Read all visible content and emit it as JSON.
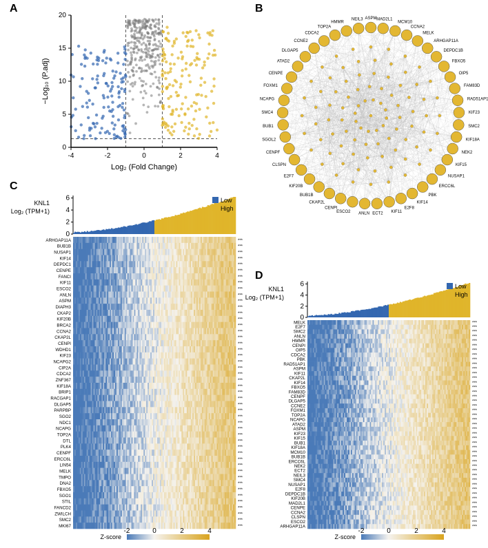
{
  "colors": {
    "blue": "#3367b0",
    "yellow": "#e0b52a",
    "gray": "#7a7a7a",
    "axis": "#000000",
    "heatmap_low": "#4a7ab8",
    "heatmap_mid": "#f5f3ef",
    "heatmap_high": "#d9a41f",
    "edge": "#b0b0b0",
    "node": "#e3b732"
  },
  "panelA": {
    "xlabel": "Log₂ (Fold Change)",
    "ylabel": "−Log₁₀ (P.adj)",
    "xlim": [
      -4,
      4
    ],
    "ylim": [
      0,
      20
    ],
    "xticks": [
      -4,
      -2,
      0,
      2,
      4
    ],
    "yticks": [
      0,
      5,
      10,
      15,
      20
    ],
    "vlines": [
      -1,
      1
    ],
    "hline": 1.3,
    "n_blue": 140,
    "n_yellow": 160,
    "n_gray": 300
  },
  "panelB": {
    "genes": [
      "ASPM",
      "MAD2L1",
      "MCM10",
      "CCNA2",
      "MELK",
      "ARHGAP11A",
      "DEPDC1B",
      "FBXO5",
      "OIP5",
      "FAM83D",
      "RAD51AP1",
      "KIF23",
      "SMC2",
      "KIF18A",
      "NEK2",
      "KIF15",
      "NUSAP1",
      "ERCC6L",
      "PBK",
      "KIF14",
      "E2F8",
      "KIF11",
      "ECT2",
      "ANLN",
      "ESCO2",
      "CENPI",
      "CKAP2L",
      "BUB1B",
      "KIF20B",
      "E2F7",
      "CLSPN",
      "CENPF",
      "SGOL2",
      "BUB1",
      "SMC4",
      "NCAPG",
      "FOXM1",
      "CENPE",
      "ATAD2",
      "DLGAP5",
      "CCNE2",
      "CDCA2",
      "TOP2A",
      "HMMR",
      "NEIL3"
    ],
    "n_inner_rings": 5,
    "inner_per_ring": 24
  },
  "panelC": {
    "title": "KNL1",
    "ylabel": "Log₂ (TPM+1)",
    "legend": [
      "Low",
      "High"
    ],
    "genes": [
      "ARHGAP11A",
      "BUB1B",
      "NUSAP1",
      "KIF14",
      "DEPDC1",
      "CENPE",
      "FANCI",
      "KIF11",
      "ESCO2",
      "ANLN",
      "ASPM",
      "DIAPH3",
      "CKAP2",
      "KIF20B",
      "BRCA2",
      "CCNA2",
      "CKAP2L",
      "CENPI",
      "WDHD1",
      "KIF23",
      "NCAPG2",
      "CIP2A",
      "CDCA2",
      "ZNF367",
      "KIF18A",
      "BRIP1",
      "RACGAP1",
      "DLGAP5",
      "PARPBP",
      "SGO2",
      "NDC1",
      "NCAPG",
      "TOP2A",
      "DTL",
      "PLK4",
      "CENPF",
      "ERCC6L",
      "LIN54",
      "MELK",
      "TMPO",
      "DNA2",
      "FBXO5",
      "SGO1",
      "STIL",
      "FANCD2",
      "ZWILCH",
      "SMC2",
      "MKI67"
    ],
    "zscore_ticks": [
      -2,
      0,
      2,
      4
    ]
  },
  "panelD": {
    "title": "KNL1",
    "ylabel": "Log₂ (TPM+1)",
    "legend": [
      "Low",
      "High"
    ],
    "genes": [
      "MELK",
      "E2F7",
      "SMC2",
      "ANLN",
      "HMMR",
      "CENPI",
      "OIP5",
      "CDCA2",
      "PBK",
      "RAD51AP1",
      "ASPM",
      "KIF11",
      "CKAP2L",
      "KIF14",
      "FBXO5",
      "FAM83D",
      "CENPF",
      "DLGAP5",
      "CCNE2",
      "FOXM1",
      "TOP2A",
      "NCAPG",
      "ATAD2",
      "ASPM",
      "KIF23",
      "KIF15",
      "BUB1",
      "KIF18A",
      "MCM10",
      "BUB1B",
      "ERCC6L",
      "NEK2",
      "ECT2",
      "NEIL3",
      "SMC4",
      "NUSAP1",
      "E2F8",
      "DEPDC1B",
      "KIF20B",
      "MAD2L1",
      "CENPE",
      "CCNA2",
      "CLSPN",
      "ESCO2",
      "ARHGAP11A"
    ],
    "zscore_ticks": [
      -2,
      0,
      2,
      4
    ]
  }
}
